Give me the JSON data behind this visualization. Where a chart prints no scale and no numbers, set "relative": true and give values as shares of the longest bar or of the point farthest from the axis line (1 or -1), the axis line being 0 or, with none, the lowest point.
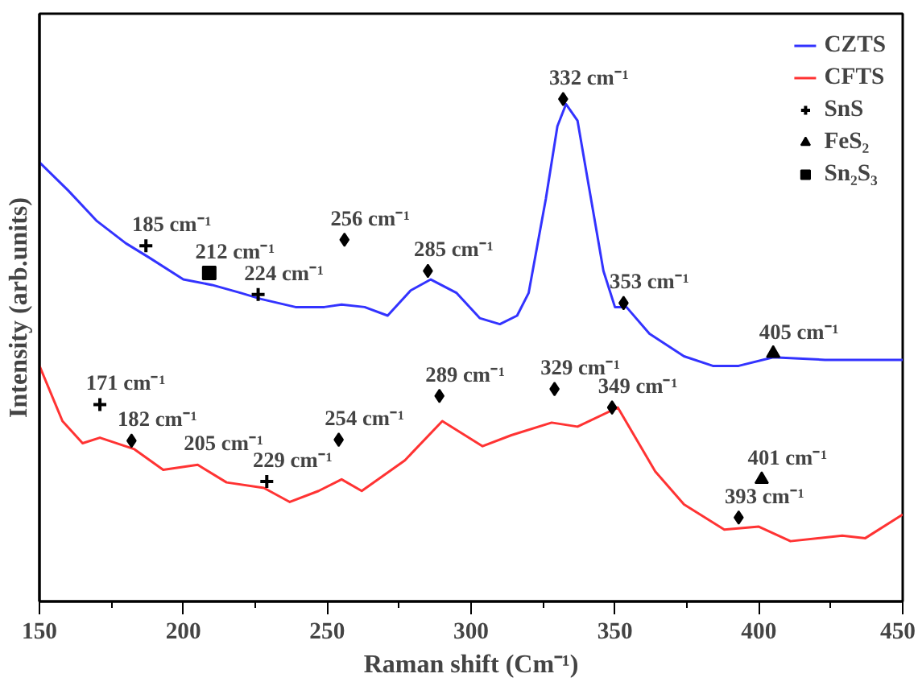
{
  "chart_data": {
    "type": "line",
    "relative": true,
    "xlabel": "Raman shift (Cm⁻¹)",
    "ylabel": "Intensity (arb.units)",
    "xlim": [
      150,
      450
    ],
    "xticks": [
      150,
      200,
      250,
      300,
      350,
      400,
      450
    ],
    "legend": "top right",
    "line_style": "solid",
    "series": [
      {
        "name": "CZTS",
        "color": "#3333ff",
        "x": [
          150,
          160,
          170,
          180,
          188,
          200,
          210,
          220,
          227,
          239,
          249,
          255,
          263,
          271,
          279,
          286,
          295,
          303,
          310,
          316,
          320,
          326,
          330,
          333,
          337,
          341,
          346,
          350,
          354,
          362,
          374,
          384,
          393,
          405,
          423,
          450
        ],
        "values": [
          0.874,
          0.818,
          0.757,
          0.713,
          0.685,
          0.641,
          0.63,
          0.614,
          0.602,
          0.586,
          0.586,
          0.591,
          0.586,
          0.569,
          0.619,
          0.641,
          0.614,
          0.564,
          0.552,
          0.569,
          0.614,
          0.802,
          0.946,
          0.99,
          0.957,
          0.824,
          0.658,
          0.586,
          0.586,
          0.533,
          0.488,
          0.469,
          0.469,
          0.486,
          0.481,
          0.481
        ]
      },
      {
        "name": "CFTS",
        "color": "#ff3333",
        "x": [
          150,
          158,
          165,
          171,
          183,
          193,
          205,
          215,
          228,
          237,
          247,
          255,
          262,
          277,
          290,
          304,
          314,
          328,
          337,
          351,
          364,
          374,
          388,
          400,
          411,
          429,
          437,
          450
        ],
        "values": [
          0.469,
          0.359,
          0.315,
          0.326,
          0.303,
          0.262,
          0.272,
          0.237,
          0.226,
          0.198,
          0.22,
          0.243,
          0.22,
          0.281,
          0.359,
          0.309,
          0.331,
          0.356,
          0.348,
          0.386,
          0.259,
          0.193,
          0.143,
          0.149,
          0.12,
          0.131,
          0.126,
          0.173
        ]
      },
      {
        "type": "scatter",
        "marker": "diamond",
        "color": "#000000",
        "x": [
          256,
          285,
          332,
          353,
          182,
          254,
          289,
          329,
          349,
          393
        ],
        "values": [
          0.72,
          0.658,
          1.0,
          0.594,
          0.32,
          0.322,
          0.409,
          0.423,
          0.386,
          0.167
        ]
      },
      {
        "type": "scatter",
        "name": "SnS",
        "marker": "cross",
        "color": "#000000",
        "x": [
          187,
          226,
          171,
          229
        ],
        "values": [
          0.708,
          0.611,
          0.392,
          0.239
        ]
      },
      {
        "type": "scatter",
        "name": "FeS₂",
        "marker": "triangle",
        "color": "#000000",
        "x": [
          405,
          401
        ],
        "values": [
          0.494,
          0.243
        ]
      },
      {
        "type": "scatter",
        "name": "Sn₂S₃",
        "marker": "square",
        "color": "#000000",
        "x": [
          209
        ],
        "values": [
          0.654
        ]
      }
    ],
    "annotations": [
      {
        "text": "185 cm⁻¹",
        "x": 187,
        "y": 0.708
      },
      {
        "text": "212 cm⁻¹",
        "x": 209,
        "y": 0.654
      },
      {
        "text": "224 cm⁻¹",
        "x": 226,
        "y": 0.611
      },
      {
        "text": "256 cm⁻¹",
        "x": 256,
        "y": 0.72
      },
      {
        "text": "285 cm⁻¹",
        "x": 285,
        "y": 0.658
      },
      {
        "text": "332 cm⁻¹",
        "x": 332,
        "y": 1.0
      },
      {
        "text": "353 cm⁻¹",
        "x": 353,
        "y": 0.594
      },
      {
        "text": "405 cm⁻¹",
        "x": 405,
        "y": 0.494
      },
      {
        "text": "171 cm⁻¹",
        "x": 171,
        "y": 0.392
      },
      {
        "text": "182 cm⁻¹",
        "x": 182,
        "y": 0.32
      },
      {
        "text": "205 cm⁻¹",
        "x": 205,
        "y": 0.272
      },
      {
        "text": "229 cm⁻¹",
        "x": 229,
        "y": 0.239
      },
      {
        "text": "254 cm⁻¹",
        "x": 254,
        "y": 0.322
      },
      {
        "text": "289 cm⁻¹",
        "x": 289,
        "y": 0.409
      },
      {
        "text": "329 cm⁻¹",
        "x": 329,
        "y": 0.423
      },
      {
        "text": "349 cm⁻¹",
        "x": 349,
        "y": 0.386
      },
      {
        "text": "393 cm⁻¹",
        "x": 393,
        "y": 0.167
      },
      {
        "text": "401 cm⁻¹",
        "x": 401,
        "y": 0.243
      }
    ]
  }
}
